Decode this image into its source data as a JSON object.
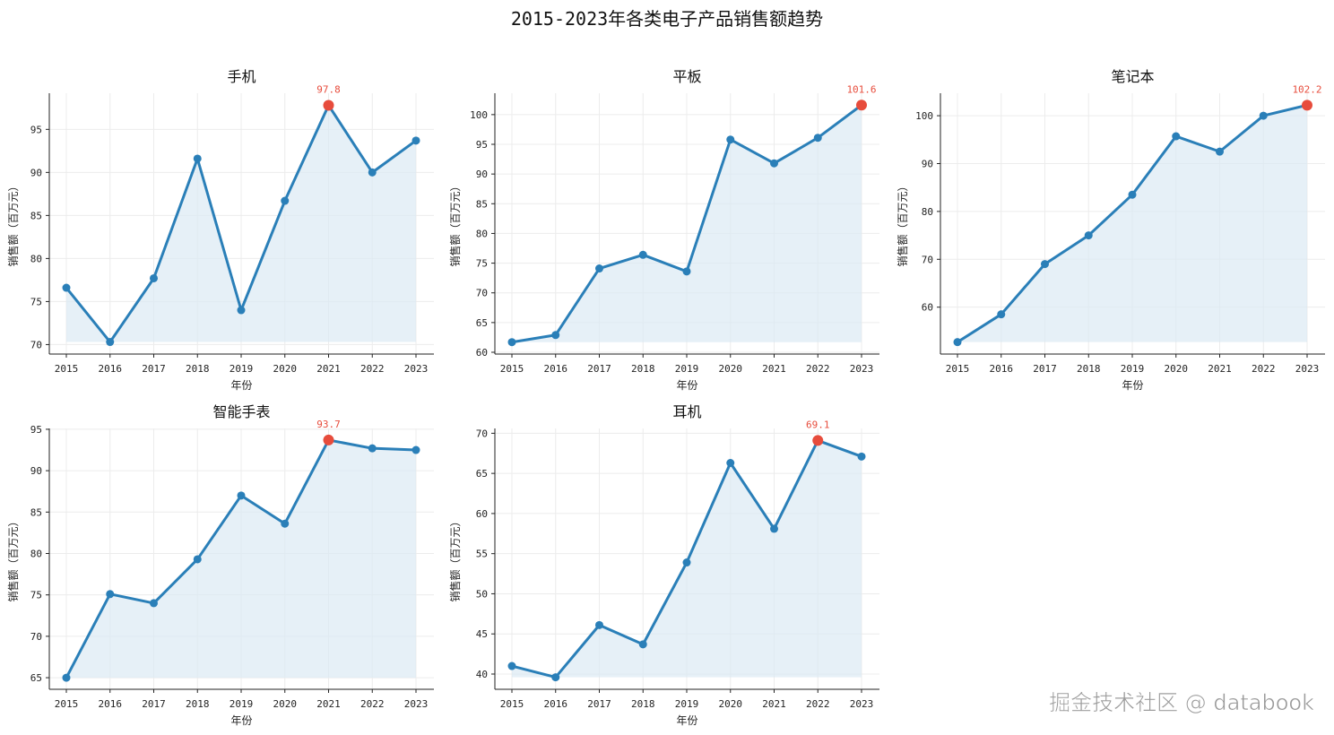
{
  "title": "2015-2023年各类电子产品销售额趋势",
  "watermark": "掘金技术社区 @ databook",
  "colors": {
    "line": "#2a7fb8",
    "fill": "#dceaf4",
    "highlight": "#e74c3c",
    "grid": "#ececec"
  },
  "chart_data": [
    {
      "type": "line",
      "title": "手机",
      "xlabel": "年份",
      "ylabel": "销售额（百万元）",
      "x": [
        2015,
        2016,
        2017,
        2018,
        2019,
        2020,
        2021,
        2022,
        2023
      ],
      "values": [
        76.6,
        70.3,
        77.7,
        91.6,
        74.0,
        86.7,
        97.8,
        90.0,
        93.7
      ],
      "ylim": [
        68.9,
        99.2
      ],
      "yticks": [
        70,
        75,
        80,
        85,
        90,
        95
      ],
      "max_label": "97.8",
      "max_index": 6
    },
    {
      "type": "line",
      "title": "平板",
      "xlabel": "年份",
      "ylabel": "销售额（百万元）",
      "x": [
        2015,
        2016,
        2017,
        2018,
        2019,
        2020,
        2021,
        2022,
        2023
      ],
      "values": [
        61.7,
        62.9,
        74.1,
        76.4,
        73.6,
        95.8,
        91.8,
        96.1,
        101.6
      ],
      "ylim": [
        59.7,
        103.6
      ],
      "yticks": [
        60,
        65,
        70,
        75,
        80,
        85,
        90,
        95,
        100
      ],
      "max_label": "101.6",
      "max_index": 8
    },
    {
      "type": "line",
      "title": "笔记本",
      "xlabel": "年份",
      "ylabel": "销售额（百万元）",
      "x": [
        2015,
        2016,
        2017,
        2018,
        2019,
        2020,
        2021,
        2022,
        2023
      ],
      "values": [
        52.7,
        58.5,
        69.0,
        75.0,
        83.5,
        95.7,
        92.5,
        100.0,
        102.2
      ],
      "ylim": [
        50.2,
        104.7
      ],
      "yticks": [
        60,
        70,
        80,
        90,
        100
      ],
      "max_label": "102.2",
      "max_index": 8
    },
    {
      "type": "line",
      "title": "智能手表",
      "xlabel": "年份",
      "ylabel": "销售额（百万元）",
      "x": [
        2015,
        2016,
        2017,
        2018,
        2019,
        2020,
        2021,
        2022,
        2023
      ],
      "values": [
        65.0,
        75.1,
        74.0,
        79.3,
        87.0,
        83.6,
        93.7,
        92.7,
        92.5
      ],
      "ylim": [
        63.6,
        95.1
      ],
      "yticks": [
        65,
        70,
        75,
        80,
        85,
        90,
        95
      ],
      "max_label": "93.7",
      "max_index": 6
    },
    {
      "type": "line",
      "title": "耳机",
      "xlabel": "年份",
      "ylabel": "销售额（百万元）",
      "x": [
        2015,
        2016,
        2017,
        2018,
        2019,
        2020,
        2021,
        2022,
        2023
      ],
      "values": [
        41.0,
        39.6,
        46.1,
        43.7,
        53.9,
        66.3,
        58.1,
        69.1,
        67.1
      ],
      "ylim": [
        38.1,
        70.6
      ],
      "yticks": [
        40,
        45,
        50,
        55,
        60,
        65,
        70
      ],
      "max_label": "69.1",
      "max_index": 7
    }
  ]
}
